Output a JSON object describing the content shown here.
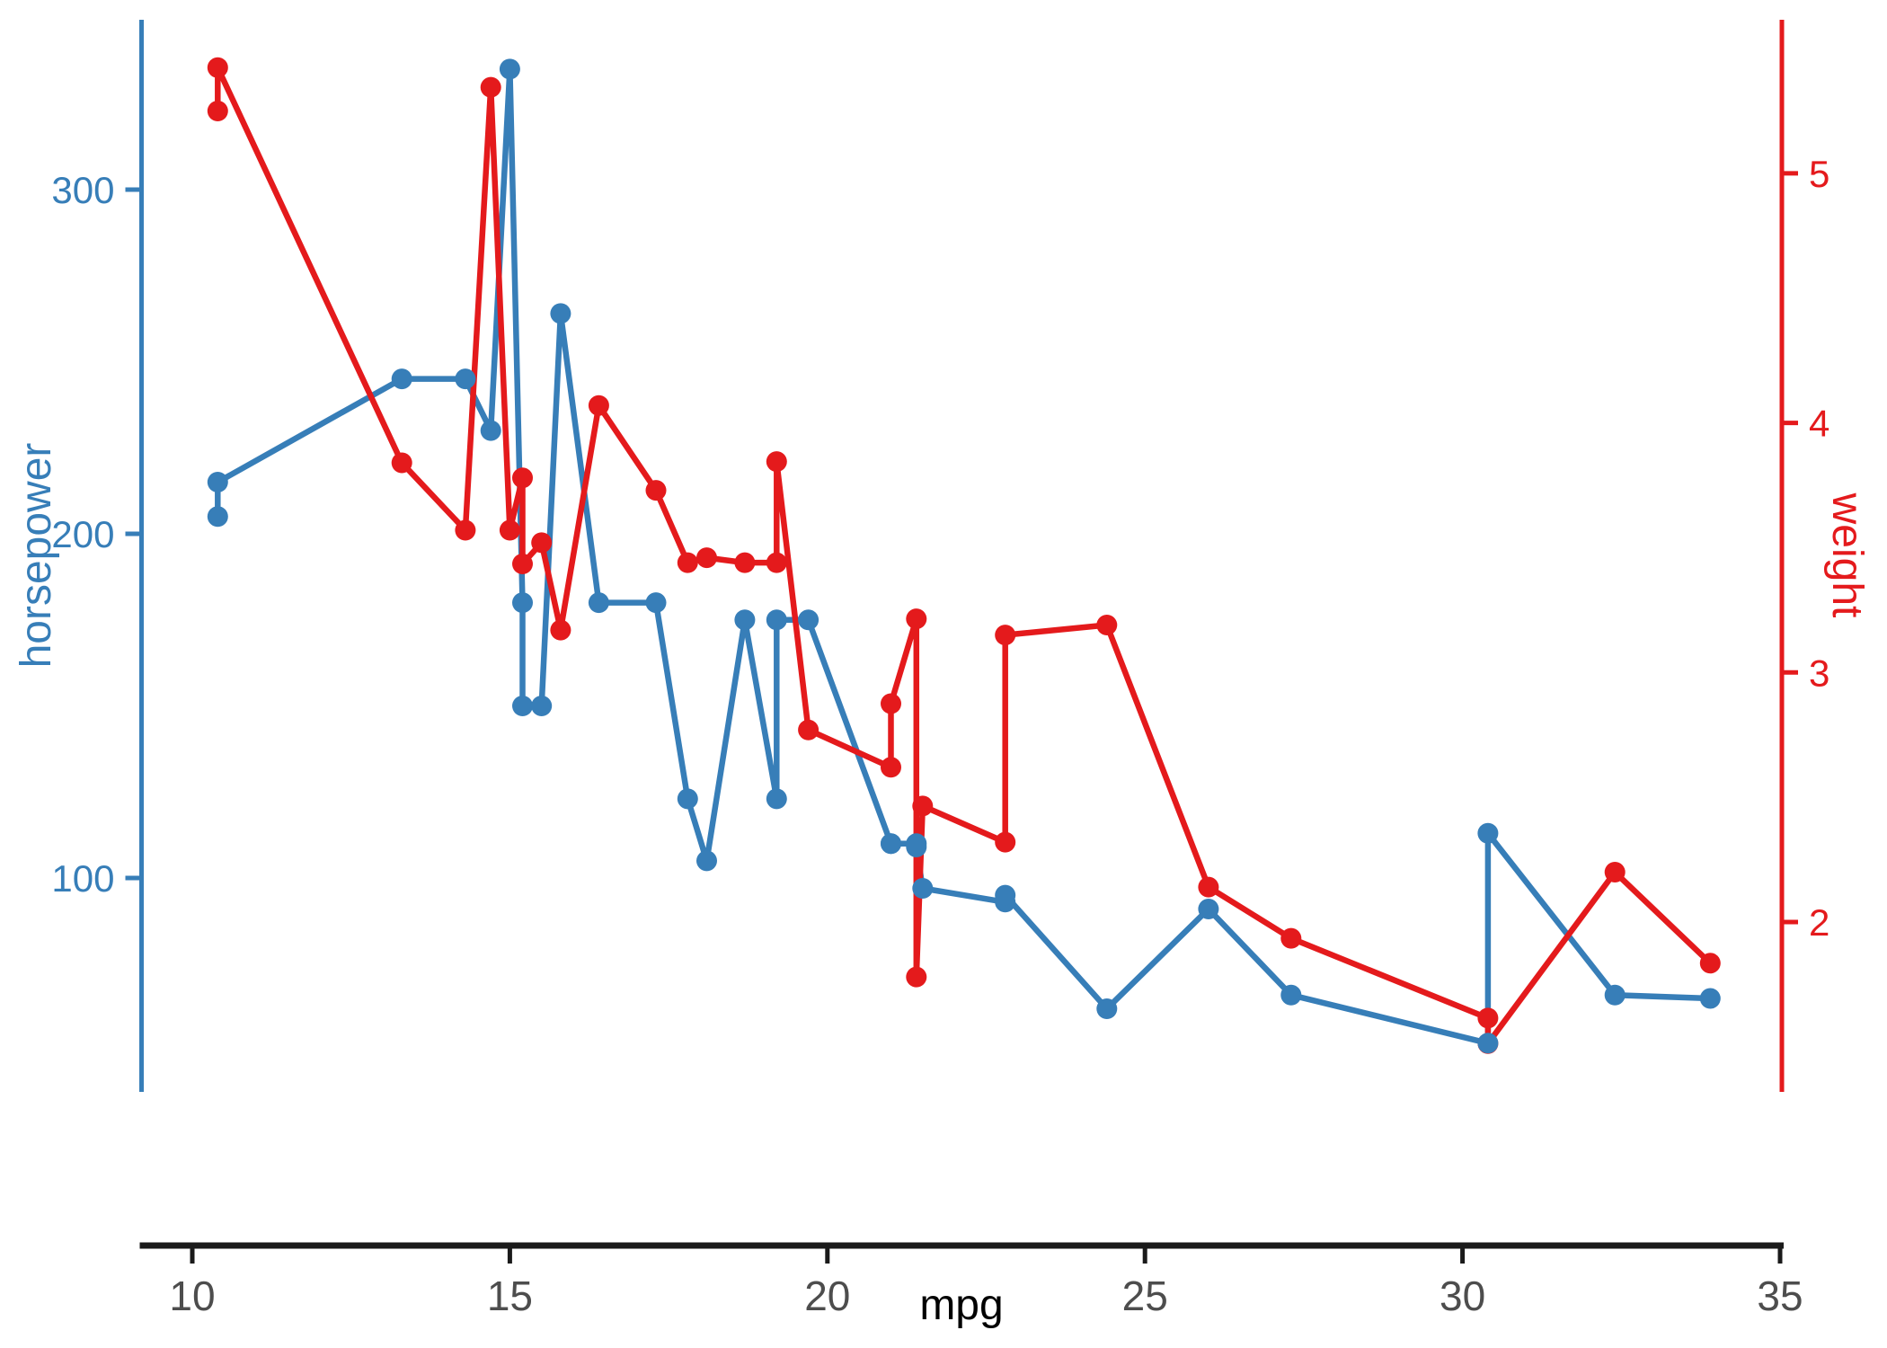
{
  "chart_data": {
    "type": "line",
    "title": "",
    "xlabel": "mpg",
    "ylabel_left": "horsepower",
    "ylabel_right": "weight",
    "background": "#FFFFFF",
    "grid": false,
    "legend": "none",
    "x_axis": {
      "label": "mpg",
      "ticks": [
        10,
        15,
        20,
        25,
        30,
        35
      ],
      "range": [
        9.2,
        35.1
      ],
      "line_color": "#1A1A1A",
      "tick_label_color": "#4D4D4D"
    },
    "left_axis": {
      "label": "horsepower",
      "ticks": [
        100,
        200,
        300
      ],
      "range": [
        38,
        349
      ],
      "color": "#377EB8"
    },
    "right_axis": {
      "label": "weight",
      "ticks": [
        2,
        3,
        4,
        5
      ],
      "range": [
        1.32,
        5.61
      ],
      "color": "#E41A1C"
    },
    "x": [
      10.4,
      10.4,
      13.3,
      14.3,
      14.7,
      15.0,
      15.2,
      15.2,
      15.5,
      15.8,
      16.4,
      17.3,
      17.8,
      18.1,
      18.7,
      19.2,
      19.2,
      19.7,
      21.0,
      21.0,
      21.4,
      21.4,
      21.5,
      22.8,
      22.8,
      24.4,
      26.0,
      27.3,
      30.4,
      30.4,
      32.4,
      33.9
    ],
    "series": [
      {
        "name": "horsepower",
        "axis": "left",
        "color": "#377EB8",
        "marker": "circle",
        "values": [
          205,
          215,
          245,
          245,
          230,
          335,
          180,
          150,
          150,
          264,
          180,
          180,
          123,
          105,
          175,
          123,
          175,
          175,
          110,
          110,
          110,
          109,
          97,
          93,
          95,
          62,
          91,
          66,
          52,
          113,
          66,
          65
        ]
      },
      {
        "name": "weight",
        "axis": "right",
        "color": "#E41A1C",
        "marker": "circle",
        "values": [
          5.25,
          5.424,
          3.84,
          3.57,
          5.345,
          3.57,
          3.78,
          3.435,
          3.52,
          3.17,
          4.07,
          3.73,
          3.44,
          3.46,
          3.44,
          3.44,
          3.845,
          2.77,
          2.62,
          2.875,
          3.215,
          1.78,
          2.465,
          2.32,
          3.15,
          3.19,
          2.14,
          1.935,
          1.615,
          1.513,
          2.2,
          1.835
        ]
      }
    ]
  }
}
